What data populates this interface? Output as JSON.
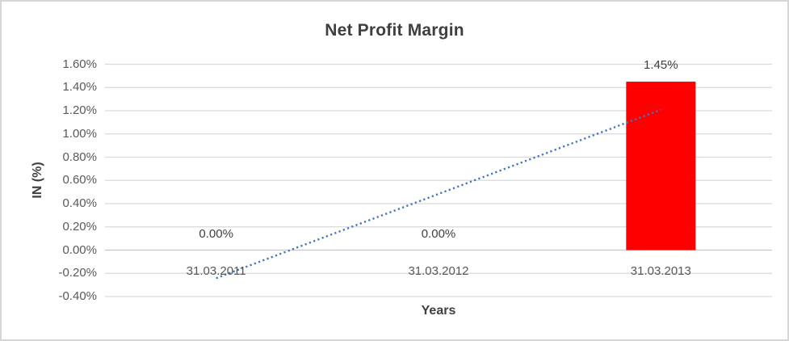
{
  "chart": {
    "title": "Net Profit Margin",
    "y_axis_title": "IN (%)",
    "x_axis_title": "Years"
  },
  "chart_data": {
    "type": "bar",
    "title": "Net Profit Margin",
    "xlabel": "Years",
    "ylabel": "IN (%)",
    "categories": [
      "31.03.2011",
      "31.03.2012",
      "31.03.2013"
    ],
    "values": [
      0.0,
      0.0,
      1.45
    ],
    "data_labels": [
      "0.00%",
      "0.00%",
      "1.45%"
    ],
    "y_ticks": [
      "1.60%",
      "1.40%",
      "1.20%",
      "1.00%",
      "0.80%",
      "0.60%",
      "0.40%",
      "0.20%",
      "0.00%",
      "-0.20%",
      "-0.40%"
    ],
    "y_tick_values": [
      1.6,
      1.4,
      1.2,
      1.0,
      0.8,
      0.6,
      0.4,
      0.2,
      0.0,
      -0.2,
      -0.4
    ],
    "ylim": [
      -0.4,
      1.6
    ],
    "grid": true,
    "legend": "none",
    "bar_color": "#ff0000",
    "gridline_color": "#d9d9d9",
    "axis_line_color": "#c6c6c6",
    "trendline": {
      "type": "linear",
      "style": "dotted",
      "color": "#4472c4"
    }
  }
}
